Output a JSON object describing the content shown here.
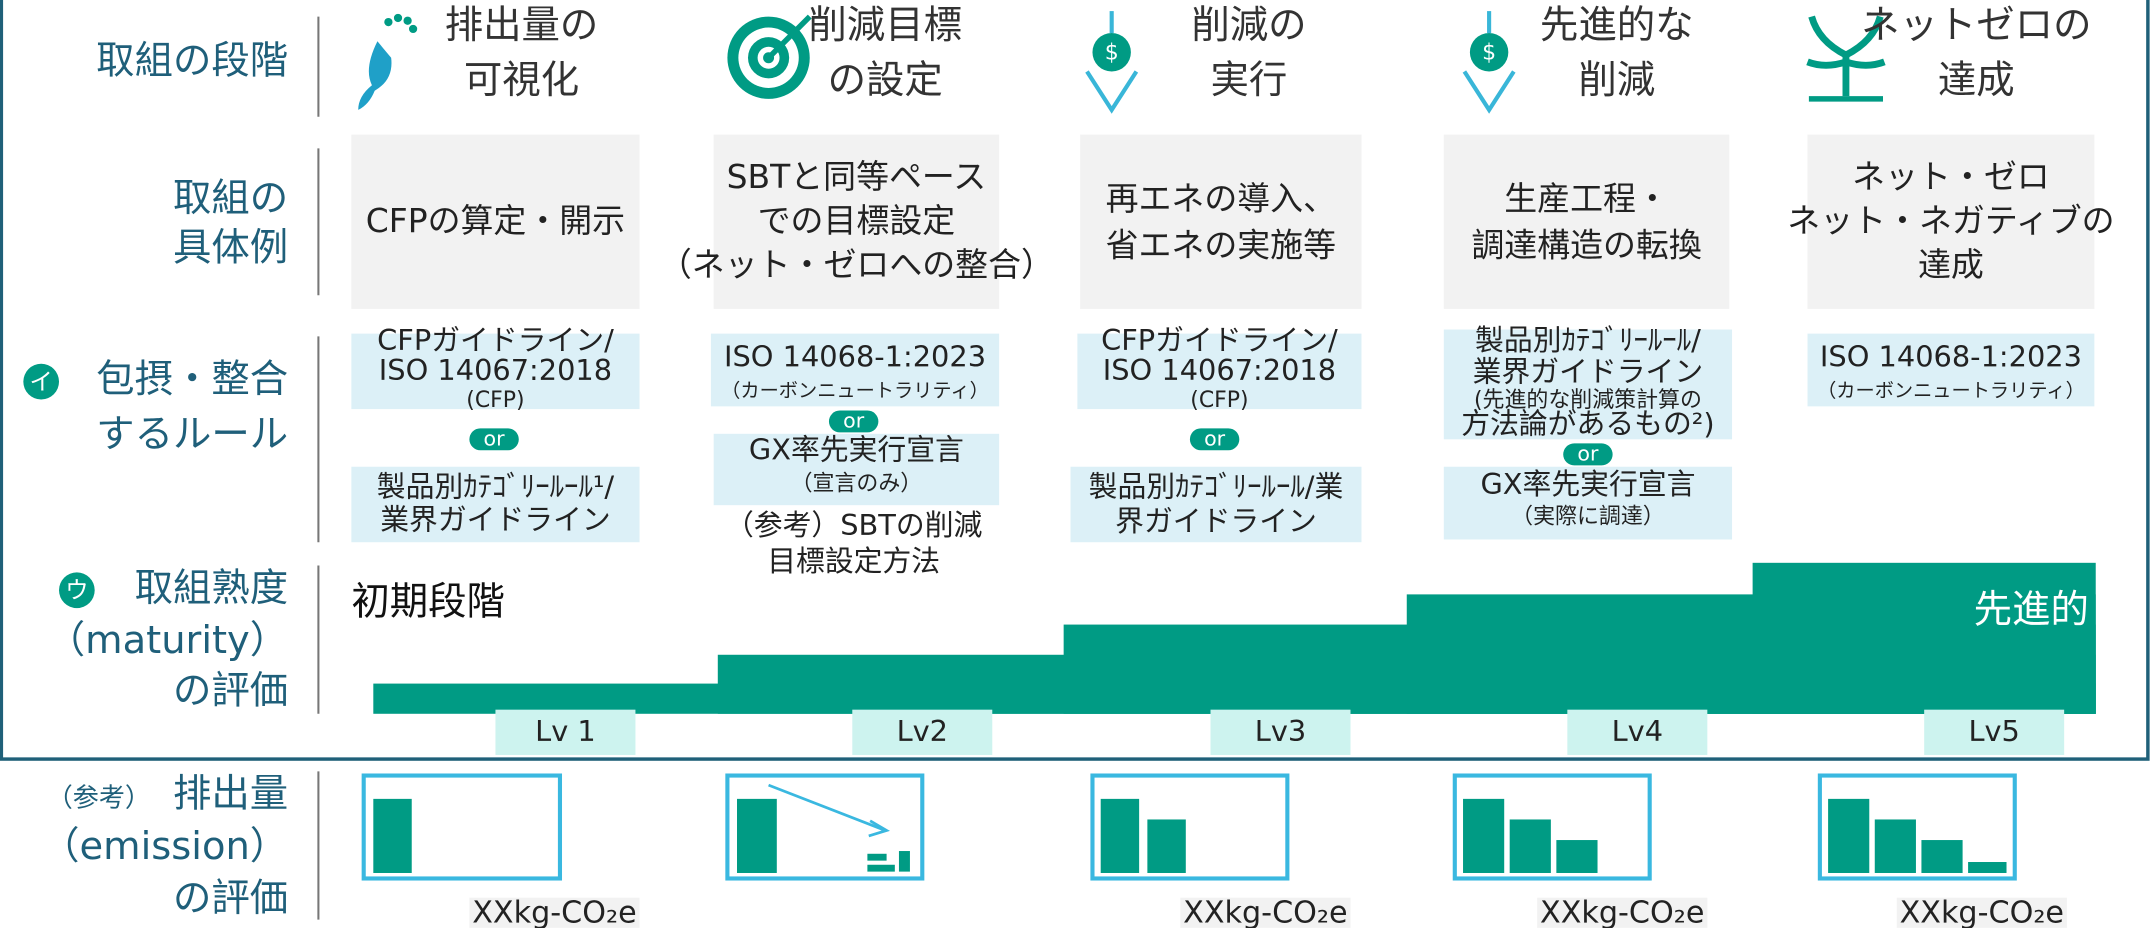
{
  "rows": [
    {
      "lines": [
        "取組の段階"
      ]
    },
    {
      "lines": [
        "取組の",
        "具体例"
      ]
    },
    {
      "badge": "イ",
      "lines": [
        "包摂・整合",
        "するルール"
      ]
    },
    {
      "badge": "ウ",
      "lines": [
        "取組熟度",
        "（maturity）",
        "の評価"
      ]
    },
    {
      "prefix": "（参考）",
      "lines": [
        "排出量",
        "（emission）",
        "の評価"
      ]
    }
  ],
  "connector": "or",
  "maturity": {
    "start": "初期段階",
    "end": "先進的"
  },
  "columns": [
    {
      "stage": [
        "排出量の",
        "可視化"
      ],
      "example": [
        "CFPの算定・開示"
      ],
      "rules": [
        [
          "CFPガイドライン/",
          "ISO 14067:2018",
          "(CFP)"
        ],
        [
          "製品別ｶﾃｺﾞﾘｰﾙｰﾙ¹/",
          "業界ガイドライン"
        ]
      ],
      "level": "Lv 1",
      "emission_label": "XXkg-CO₂e"
    },
    {
      "stage": [
        "削減目標",
        "の設定"
      ],
      "example": [
        "SBTと同等ペース",
        "での目標設定",
        "（ネット・ゼロへの整合）"
      ],
      "rules": [
        [
          "ISO 14068-1:2023",
          "（カーボンニュートラリティ）"
        ],
        [
          "GX率先実行宣言",
          "（宣言のみ）"
        ]
      ],
      "note": [
        "（参考）SBTの削減",
        "目標設定方法"
      ],
      "level": "Lv2"
    },
    {
      "stage": [
        "削減の",
        "実行"
      ],
      "example": [
        "再エネの導入、",
        "省エネの実施等"
      ],
      "rules": [
        [
          "CFPガイドライン/",
          "ISO 14067:2018",
          "(CFP)"
        ],
        [
          "製品別ｶﾃｺﾞﾘｰﾙｰﾙ/業",
          "界ガイドライン"
        ]
      ],
      "level": "Lv3",
      "emission_label": "XXkg-CO₂e"
    },
    {
      "stage": [
        "先進的な",
        "削減"
      ],
      "example": [
        "生産工程・",
        "調達構造の転換"
      ],
      "rules": [
        [
          "製品別ｶﾃｺﾞﾘｰﾙｰﾙ/",
          "業界ガイドライン",
          "(先進的な削減策計算の",
          "方法論があるもの²)"
        ],
        [
          "GX率先実行宣言",
          "（実際に調達）"
        ]
      ],
      "level": "Lv4",
      "emission_label": "XXkg-CO₂e"
    },
    {
      "stage": [
        "ネットゼロの",
        "達成"
      ],
      "example": [
        "ネット・ゼロ",
        "ネット・ネガティブの",
        "達成"
      ],
      "rules": [
        [
          "ISO 14068-1:2023",
          "（カーボンニュートラリティ）"
        ]
      ],
      "level": "Lv5",
      "emission_label": "XXkg-CO₂e"
    }
  ]
}
